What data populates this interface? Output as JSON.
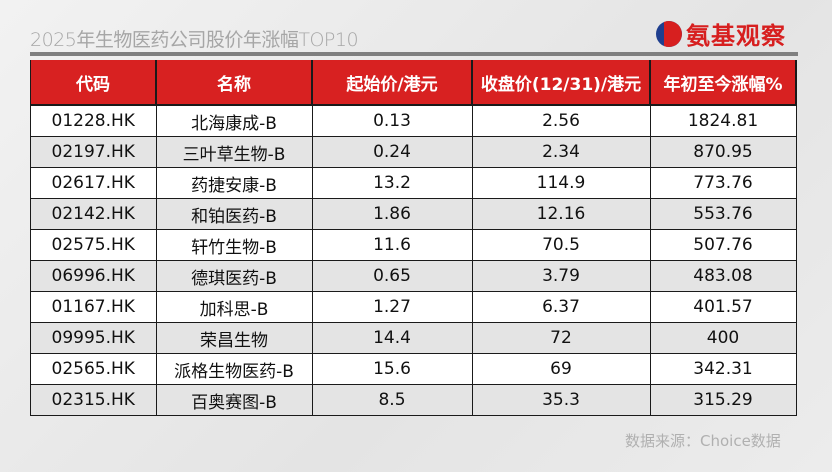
{
  "title": "2025年生物医药公司股价年涨幅TOP10",
  "logo": {
    "text": "氨基观察",
    "icon": "logo-mark-icon",
    "brand_color": "#d71f1f"
  },
  "table": {
    "headers": [
      "代码",
      "名称",
      "起始价/港元",
      "收盘价(12/31)/港元",
      "年初至今涨幅%"
    ],
    "header_color": "#d82121",
    "rows": [
      [
        "01228.HK",
        "北海康成-B",
        "0.13",
        "2.56",
        "1824.81"
      ],
      [
        "02197.HK",
        "三叶草生物-B",
        "0.24",
        "2.34",
        "870.95"
      ],
      [
        "02617.HK",
        "药捷安康-B",
        "13.2",
        "114.9",
        "773.76"
      ],
      [
        "02142.HK",
        "和铂医药-B",
        "1.86",
        "12.16",
        "553.76"
      ],
      [
        "02575.HK",
        "轩竹生物-B",
        "11.6",
        "70.5",
        "507.76"
      ],
      [
        "06996.HK",
        "德琪医药-B",
        "0.65",
        "3.79",
        "483.08"
      ],
      [
        "01167.HK",
        "加科思-B",
        "1.27",
        "6.37",
        "401.57"
      ],
      [
        "09995.HK",
        "荣昌生物",
        "14.4",
        "72",
        "400"
      ],
      [
        "02565.HK",
        "派格生物医药-B",
        "15.6",
        "69",
        "342.31"
      ],
      [
        "02315.HK",
        "百奥赛图-B",
        "8.5",
        "35.3",
        "315.29"
      ]
    ]
  },
  "source": "数据来源：Choice数据"
}
